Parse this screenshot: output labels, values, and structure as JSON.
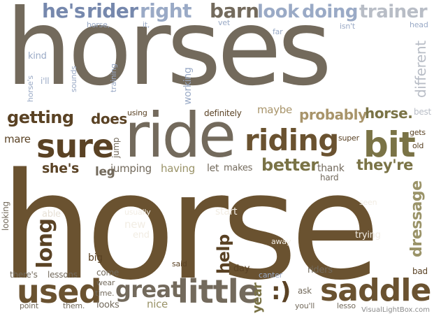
{
  "words": {
    "horses": "horses",
    "horse_big": "horse",
    "ride": "ride",
    "riding": "riding",
    "sure": "sure",
    "bit": "bit",
    "saddle": "saddle",
    "little": "little",
    "used": "used",
    "great": "great",
    "smile": ":)",
    "long": "long",
    "dressage": "dressage",
    "help": "help",
    "hes": "he's",
    "rider": "rider",
    "right": "right",
    "barn": "barn",
    "look": "look",
    "doing": "doing",
    "trainer": "trainer",
    "horse_small": "horse,",
    "it": "it,",
    "vet": "vet",
    "far": "far",
    "isnt": "isn't",
    "head": "head",
    "kind": "kind",
    "horses_small": "horse's",
    "ill": "i'll",
    "sounds": "sounds",
    "training": "training",
    "working": "working",
    "different": "different",
    "getting": "getting",
    "does": "does",
    "using": "using",
    "definitely": "definitely",
    "maybe": "maybe",
    "probably": "probably",
    "horse_dot": "horse.",
    "best": "best",
    "mare": "mare",
    "jump": "jump",
    "super": "super",
    "gets": "gets",
    "old": "old",
    "shes": "she's",
    "leg": "leg",
    "jumping": "jumping",
    "having": "having",
    "let": "let",
    "makes": "makes",
    "better": "better",
    "thank": "thank",
    "theyre": "they're",
    "hard": "hard",
    "looking": "looking",
    "able": "able",
    "usually": "usually",
    "start": "start",
    "seen": "seen",
    "new": "new",
    "end": "end",
    "trying": "trying",
    "away": "away",
    "big": "big",
    "said": "said",
    "day": "day",
    "canter": "canter",
    "riders": "riders",
    "bad": "bad",
    "theres": "there's",
    "lessons": "lessons",
    "come": "come",
    "wear": "wear",
    "time": "time.",
    "ask": "ask",
    "point": "point",
    "them": "them.",
    "looks": "looks",
    "nice": "nice",
    "year": "year",
    "youll": "you'll",
    "lesso": "lesso"
  },
  "watermark": "VisualLightBox.com",
  "colors": {
    "brown": "#6a5230",
    "grey": "#736a5c",
    "olive": "#7a7346",
    "blue": "#7688ad",
    "light_blue": "#9aaac6",
    "light_grey": "#b8bdc6"
  }
}
